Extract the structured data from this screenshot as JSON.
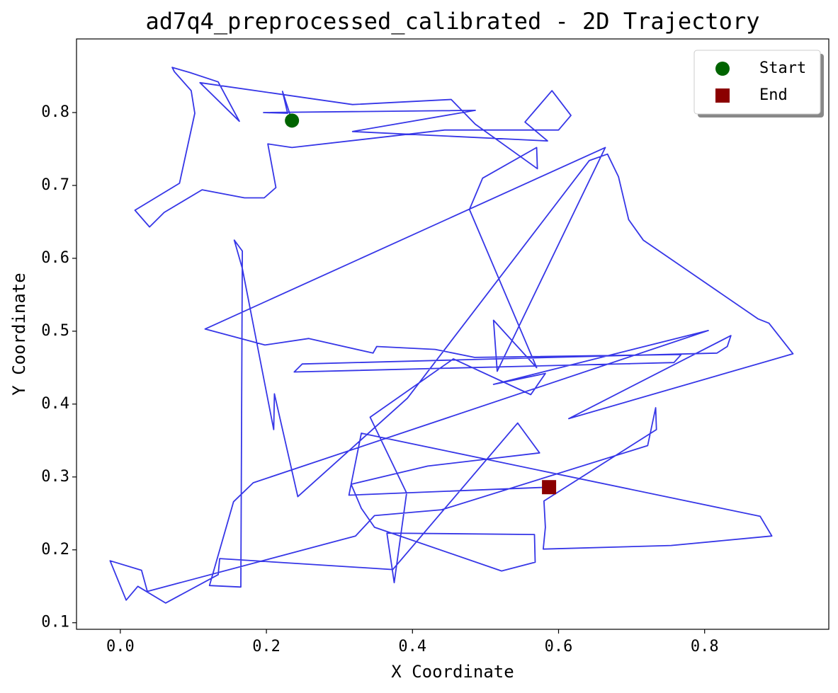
{
  "chart_data": {
    "type": "line",
    "title": "ad7q4_preprocessed_calibrated - 2D Trajectory",
    "x_label": "X Coordinate",
    "y_label": "Y Coordinate",
    "xlim": [
      -0.06,
      0.97
    ],
    "ylim": [
      0.091,
      0.901
    ],
    "xticks": [
      {
        "value": 0,
        "label": "0.0"
      },
      0.2,
      0.4,
      0.6,
      0.8
    ],
    "yticks": [
      0.1,
      0.2,
      0.3,
      0.4,
      0.5,
      0.6,
      0.7,
      0.8
    ],
    "grid": false,
    "legend": "upper right",
    "trajectory": {
      "color": "#2b2be6",
      "x": [
        0.235,
        0.222,
        0.229,
        0.196,
        0.486,
        0.318,
        0.585,
        0.554,
        0.591,
        0.617,
        0.6,
        0.444,
        0.235,
        0.202,
        0.213,
        0.197,
        0.17,
        0.112,
        0.06,
        0.04,
        0.02,
        0.081,
        0.102,
        0.097,
        0.074,
        0.071,
        0.095,
        0.134,
        0.163,
        0.109,
        0.318,
        0.453,
        0.486,
        0.571,
        0.57,
        0.496,
        0.478,
        0.57,
        0.511,
        0.516,
        0.664,
        0.116,
        0.198,
        0.258,
        0.346,
        0.351,
        0.431,
        0.485,
        0.768,
        0.758,
        0.238,
        0.249,
        0.817,
        0.831,
        0.836,
        0.614,
        0.921,
        0.888,
        0.873,
        0.716,
        0.696,
        0.682,
        0.667,
        0.642,
        0.393,
        0.243,
        0.211,
        0.21,
        0.167,
        0.156,
        0.167,
        0.165,
        0.122,
        0.155,
        0.182,
        0.805,
        0.511,
        0.582,
        0.562,
        0.456,
        0.342,
        0.392,
        0.375,
        0.365,
        0.567,
        0.568,
        0.522,
        0.348,
        0.33,
        0.316,
        0.421,
        0.574,
        0.544,
        0.373,
        0.136,
        0.134,
        0.062,
        0.024,
        0.008,
        -0.014,
        0.029,
        0.037,
        0.322,
        0.348,
        0.44,
        0.722,
        0.733,
        0.734,
        0.58,
        0.582,
        0.579,
        0.754,
        0.892,
        0.876,
        0.33,
        0.313,
        0.587
      ],
      "y": [
        0.789,
        0.829,
        0.799,
        0.8,
        0.803,
        0.774,
        0.761,
        0.787,
        0.83,
        0.796,
        0.776,
        0.776,
        0.752,
        0.757,
        0.697,
        0.683,
        0.683,
        0.694,
        0.663,
        0.643,
        0.666,
        0.703,
        0.799,
        0.83,
        0.856,
        0.862,
        0.855,
        0.842,
        0.788,
        0.841,
        0.811,
        0.818,
        0.784,
        0.723,
        0.752,
        0.71,
        0.667,
        0.45,
        0.515,
        0.445,
        0.752,
        0.503,
        0.481,
        0.49,
        0.47,
        0.479,
        0.475,
        0.464,
        0.468,
        0.457,
        0.444,
        0.455,
        0.47,
        0.479,
        0.494,
        0.38,
        0.469,
        0.511,
        0.517,
        0.625,
        0.653,
        0.712,
        0.743,
        0.734,
        0.408,
        0.273,
        0.414,
        0.365,
        0.586,
        0.625,
        0.61,
        0.149,
        0.151,
        0.266,
        0.292,
        0.501,
        0.427,
        0.442,
        0.413,
        0.462,
        0.382,
        0.278,
        0.155,
        0.223,
        0.221,
        0.183,
        0.171,
        0.231,
        0.257,
        0.29,
        0.315,
        0.333,
        0.374,
        0.173,
        0.188,
        0.166,
        0.127,
        0.15,
        0.131,
        0.185,
        0.172,
        0.143,
        0.219,
        0.247,
        0.255,
        0.343,
        0.395,
        0.365,
        0.267,
        0.231,
        0.201,
        0.206,
        0.219,
        0.246,
        0.36,
        0.275,
        0.286
      ]
    },
    "markers": [
      {
        "name": "Start",
        "color": "#006400",
        "shape": "circle",
        "x": 0.235,
        "y": 0.789
      },
      {
        "name": "End",
        "color": "#8b0000",
        "shape": "square",
        "x": 0.587,
        "y": 0.286
      }
    ]
  }
}
